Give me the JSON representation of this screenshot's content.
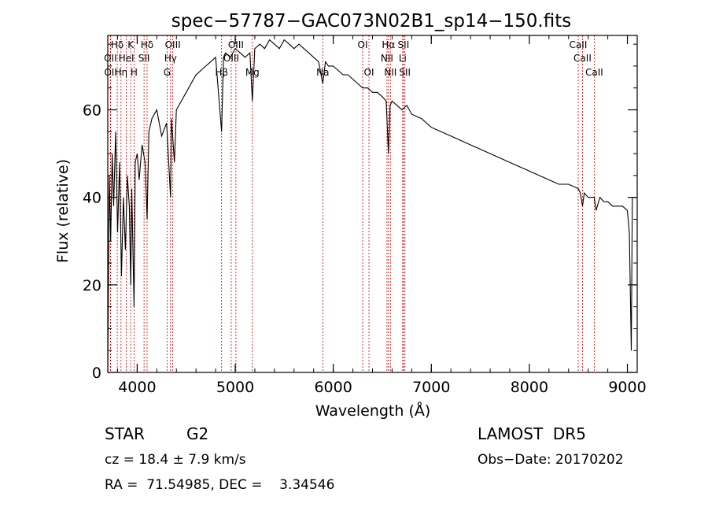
{
  "chart_data": {
    "type": "line",
    "title": "spec−57787−GAC073N02B1_sp14−150.fits",
    "xlabel": "Wavelength (Å)",
    "ylabel": "Flux (relative)",
    "xlim": [
      3700,
      9100
    ],
    "ylim": [
      0,
      77
    ],
    "xticks": [
      4000,
      5000,
      6000,
      7000,
      8000,
      9000
    ],
    "yticks": [
      0,
      20,
      40,
      60
    ],
    "grid": false,
    "line_color": "#000000",
    "marker_color": "#cc0000",
    "spectrum": {
      "x": [
        3700,
        3715,
        3730,
        3745,
        3760,
        3780,
        3800,
        3820,
        3840,
        3860,
        3880,
        3900,
        3920,
        3934,
        3945,
        3968,
        3980,
        4000,
        4020,
        4050,
        4080,
        4101,
        4120,
        4150,
        4200,
        4250,
        4300,
        4340,
        4350,
        4380,
        4400,
        4450,
        4500,
        4550,
        4600,
        4650,
        4700,
        4750,
        4800,
        4861,
        4880,
        4900,
        4950,
        5000,
        5050,
        5100,
        5150,
        5175,
        5200,
        5250,
        5300,
        5350,
        5400,
        5450,
        5500,
        5550,
        5600,
        5650,
        5700,
        5750,
        5800,
        5850,
        5893,
        5920,
        5950,
        6000,
        6050,
        6100,
        6150,
        6200,
        6250,
        6300,
        6350,
        6400,
        6450,
        6500,
        6540,
        6563,
        6580,
        6600,
        6650,
        6700,
        6750,
        6800,
        6900,
        7000,
        7100,
        7200,
        7300,
        7400,
        7500,
        7600,
        7700,
        7800,
        7900,
        8000,
        8100,
        8200,
        8300,
        8400,
        8498,
        8520,
        8542,
        8560,
        8600,
        8640,
        8662,
        8680,
        8720,
        8760,
        8800,
        8850,
        8900,
        8950,
        9000,
        9020,
        9030,
        9040,
        9050
      ],
      "y": [
        0,
        45,
        30,
        50,
        38,
        55,
        32,
        48,
        22,
        40,
        28,
        45,
        38,
        20,
        42,
        15,
        48,
        50,
        44,
        52,
        48,
        35,
        55,
        58,
        60,
        54,
        57,
        40,
        58,
        48,
        60,
        62,
        64,
        66,
        68,
        69,
        70,
        71,
        72,
        55,
        72,
        73,
        72,
        74,
        73,
        72,
        73,
        62,
        74,
        75,
        74,
        76,
        75,
        74,
        76,
        75,
        74,
        75,
        74,
        73,
        72,
        71,
        66,
        71,
        70,
        70,
        69,
        68,
        68,
        67,
        66,
        65,
        65,
        64,
        64,
        63,
        62,
        50,
        61,
        62,
        61,
        60,
        61,
        59,
        58,
        56,
        55,
        54,
        53,
        52,
        51,
        50,
        49,
        48,
        47,
        46,
        45,
        44,
        43,
        43,
        42,
        41,
        38,
        41,
        40,
        40,
        40,
        37,
        40,
        39,
        39,
        38,
        38,
        38,
        37,
        32,
        18,
        5,
        40
      ]
    },
    "line_markers": [
      {
        "label": "Hδ",
        "x": 3797,
        "row": 1
      },
      {
        "label": "K",
        "x": 3934,
        "row": 1
      },
      {
        "label": "Hδ",
        "x": 4101,
        "row": 1
      },
      {
        "label": "OIII",
        "x": 4363,
        "row": 1
      },
      {
        "label": "OIII",
        "x": 5007,
        "row": 1
      },
      {
        "label": "OI",
        "x": 6300,
        "row": 1
      },
      {
        "label": "Hα",
        "x": 6563,
        "row": 1
      },
      {
        "label": "SII",
        "x": 6716,
        "row": 1
      },
      {
        "label": "CaII",
        "x": 8498,
        "row": 1
      },
      {
        "label": "OII",
        "x": 3727,
        "row": 2
      },
      {
        "label": "HeI",
        "x": 3889,
        "row": 2
      },
      {
        "label": "SII",
        "x": 4070,
        "row": 2
      },
      {
        "label": "Hγ",
        "x": 4340,
        "row": 2
      },
      {
        "label": "OIII",
        "x": 4959,
        "row": 2
      },
      {
        "label": "NII",
        "x": 6548,
        "row": 2
      },
      {
        "label": "Li",
        "x": 6708,
        "row": 2
      },
      {
        "label": "CaII",
        "x": 8542,
        "row": 2
      },
      {
        "label": "OII",
        "x": 3729,
        "row": 3
      },
      {
        "label": "Hη",
        "x": 3835,
        "row": 3
      },
      {
        "label": "H",
        "x": 3968,
        "row": 3
      },
      {
        "label": "G",
        "x": 4305,
        "row": 3
      },
      {
        "label": "Hβ",
        "x": 4861,
        "row": 3
      },
      {
        "label": "Mg",
        "x": 5175,
        "row": 3
      },
      {
        "label": "Na",
        "x": 5893,
        "row": 3
      },
      {
        "label": "OI",
        "x": 6364,
        "row": 3
      },
      {
        "label": "NII",
        "x": 6583,
        "row": 3
      },
      {
        "label": "SII",
        "x": 6731,
        "row": 3
      },
      {
        "label": "CaII",
        "x": 8662,
        "row": 3
      }
    ]
  },
  "info": {
    "object_class": "STAR",
    "subclass": "G2",
    "survey": "LAMOST  DR5",
    "cz": "cz = 18.4 ± 7.9 km/s",
    "obs_date": "Obs−Date: 20170202",
    "radec": "RA =  71.54985, DEC =    3.34546"
  }
}
